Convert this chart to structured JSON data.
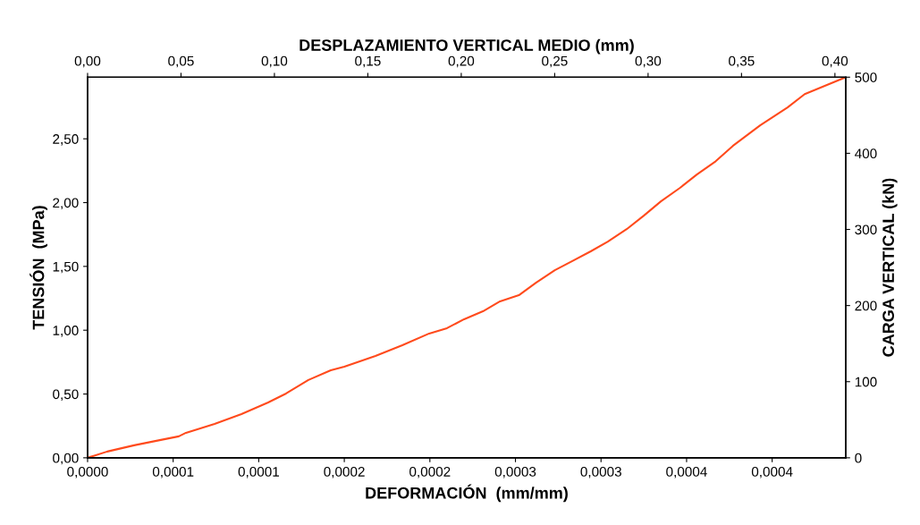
{
  "chart_data": {
    "type": "line",
    "xlabel": "DEFORMACIÓN  (mm/mm)",
    "ylabel": "TENSIÓN  (MPa)",
    "x2label": "DESPLAZAMIENTO VERTICAL MEDIO (mm)",
    "y2label": "CARGA VERTICAL (kN)",
    "series": [
      {
        "color": "#ff4a1c",
        "x": [
          0,
          1.15e-05,
          2.72e-05,
          4.28e-05,
          5.33e-05,
          5.75e-05,
          7.42e-05,
          8.99e-05,
          0.0001055,
          0.000116,
          0.000129,
          0.0001421,
          0.00015,
          0.0001682,
          0.0001839,
          0.0001996,
          0.00021,
          0.00022,
          0.000231,
          0.000241,
          0.000252,
          0.000262,
          0.000273,
          0.000283,
          0.000294,
          0.000304,
          0.000315,
          0.000325,
          0.000335,
          0.000346,
          0.000356,
          0.000367,
          0.000377,
          0.000393,
          0.000409,
          0.000419,
          0.000443
        ],
        "values": [
          0,
          0.049,
          0.098,
          0.14,
          0.168,
          0.196,
          0.266,
          0.343,
          0.434,
          0.504,
          0.61,
          0.686,
          0.714,
          0.798,
          0.882,
          0.974,
          1.016,
          1.086,
          1.148,
          1.226,
          1.274,
          1.372,
          1.47,
          1.54,
          1.618,
          1.694,
          1.792,
          1.898,
          2.01,
          2.114,
          2.22,
          2.324,
          2.444,
          2.606,
          2.746,
          2.85,
          2.983
        ]
      }
    ],
    "xlim": [
      0,
      0.000443
    ],
    "xticks": [
      {
        "value": 0,
        "label": "0,0000"
      },
      {
        "value": 5e-05,
        "label": "0,0001"
      },
      {
        "value": 0.0001,
        "label": "0,0001"
      },
      {
        "value": 0.00015,
        "label": "0,0002"
      },
      {
        "value": 0.0002,
        "label": "0,0002"
      },
      {
        "value": 0.00025,
        "label": "0,0003"
      },
      {
        "value": 0.0003,
        "label": "0,0003"
      },
      {
        "value": 0.00035,
        "label": "0,0004"
      },
      {
        "value": 0.0004,
        "label": "0,0004"
      }
    ],
    "ylim": [
      0,
      2.983
    ],
    "yticks": [
      {
        "value": 0,
        "label": "0,00"
      },
      {
        "value": 0.5,
        "label": "0,50"
      },
      {
        "value": 1,
        "label": "1,00"
      },
      {
        "value": 1.5,
        "label": "1,50"
      },
      {
        "value": 2,
        "label": "2,00"
      },
      {
        "value": 2.5,
        "label": "2,50"
      }
    ],
    "x2lim": [
      0,
      0.4058
    ],
    "x2ticks": [
      {
        "value": 0,
        "label": "0,00"
      },
      {
        "value": 0.05,
        "label": "0,05"
      },
      {
        "value": 0.1,
        "label": "0,10"
      },
      {
        "value": 0.15,
        "label": "0,15"
      },
      {
        "value": 0.2,
        "label": "0,20"
      },
      {
        "value": 0.25,
        "label": "0,25"
      },
      {
        "value": 0.3,
        "label": "0,30"
      },
      {
        "value": 0.35,
        "label": "0,35"
      },
      {
        "value": 0.4,
        "label": "0,40"
      }
    ],
    "y2lim": [
      0,
      500
    ],
    "y2ticks": [
      0,
      100,
      200,
      300,
      400,
      500
    ],
    "grid": false,
    "legend": false,
    "marker": "none",
    "line_style": "solid"
  }
}
